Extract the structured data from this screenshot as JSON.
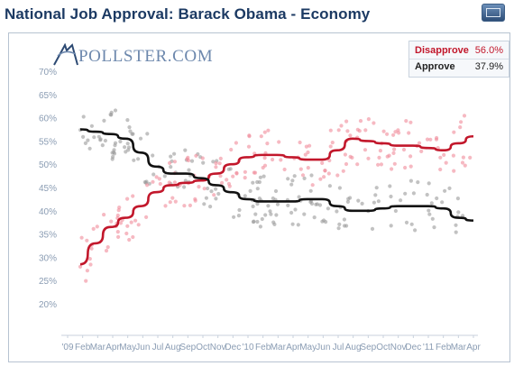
{
  "header": {
    "title": "National Job Approval: Barack Obama - Economy"
  },
  "logo": {
    "text": "POLLSTER.COM"
  },
  "legend": {
    "items": [
      {
        "label": "Disapprove",
        "value": "56.0%",
        "color": "#c2172b"
      },
      {
        "label": "Approve",
        "value": "37.9%",
        "color": "#111111"
      }
    ]
  },
  "colors": {
    "disapprove": "#c2172b",
    "approve": "#111111",
    "disapprove_dots": "#f08a9a",
    "approve_dots": "#9a9a9a",
    "axis_text": "#8a9cb3"
  },
  "chart_data": {
    "type": "line",
    "title": "National Job Approval: Barack Obama - Economy",
    "x_start": "2009-02",
    "x_end": "2011-04",
    "x_tick_labels": [
      "'09",
      "Feb",
      "Mar",
      "Apr",
      "May",
      "Jun",
      "Jul",
      "Aug",
      "Sep",
      "Oct",
      "Nov",
      "Dec",
      "'10",
      "Feb",
      "Mar",
      "Apr",
      "May",
      "Jun",
      "Jul",
      "Aug",
      "Sep",
      "Oct",
      "Nov",
      "Dec",
      "'11",
      "Feb",
      "Mar",
      "Apr"
    ],
    "y_tick_labels": [
      "20%",
      "25%",
      "30%",
      "35%",
      "40%",
      "45%",
      "50%",
      "55%",
      "60%",
      "65%",
      "70%"
    ],
    "ylim": [
      20,
      70
    ],
    "legend_position": "top-right",
    "grid": false,
    "series": [
      {
        "name": "Disapprove",
        "color": "#c2172b",
        "x": [
          "2009-02",
          "2009-03",
          "2009-04",
          "2009-05",
          "2009-06",
          "2009-07",
          "2009-08",
          "2009-09",
          "2009-10",
          "2009-11",
          "2009-12",
          "2010-01",
          "2010-02",
          "2010-03",
          "2010-04",
          "2010-05",
          "2010-06",
          "2010-07",
          "2010-08",
          "2010-09",
          "2010-10",
          "2010-11",
          "2010-12",
          "2011-01",
          "2011-02",
          "2011-03",
          "2011-04"
        ],
        "values": [
          28.5,
          33,
          36.5,
          38.5,
          41,
          44,
          45.5,
          46,
          46.5,
          48,
          50,
          51.5,
          52,
          52,
          51.5,
          51,
          51,
          53,
          55.5,
          55,
          54.5,
          54,
          54,
          53.5,
          53,
          54.5,
          56
        ],
        "last_value": 56.0
      },
      {
        "name": "Approve",
        "color": "#111111",
        "x": [
          "2009-02",
          "2009-03",
          "2009-04",
          "2009-05",
          "2009-06",
          "2009-07",
          "2009-08",
          "2009-09",
          "2009-10",
          "2009-11",
          "2009-12",
          "2010-01",
          "2010-02",
          "2010-03",
          "2010-04",
          "2010-05",
          "2010-06",
          "2010-07",
          "2010-08",
          "2010-09",
          "2010-10",
          "2010-11",
          "2010-12",
          "2011-01",
          "2011-02",
          "2011-03",
          "2011-04"
        ],
        "values": [
          57.5,
          57,
          56.5,
          55.5,
          52.5,
          49.5,
          48,
          48,
          47,
          45.5,
          44,
          42.5,
          42,
          42,
          42,
          42.5,
          42.5,
          41,
          40,
          40,
          40.5,
          41,
          41,
          41,
          40.5,
          38.5,
          37.9
        ],
        "last_value": 37.9
      }
    ]
  }
}
